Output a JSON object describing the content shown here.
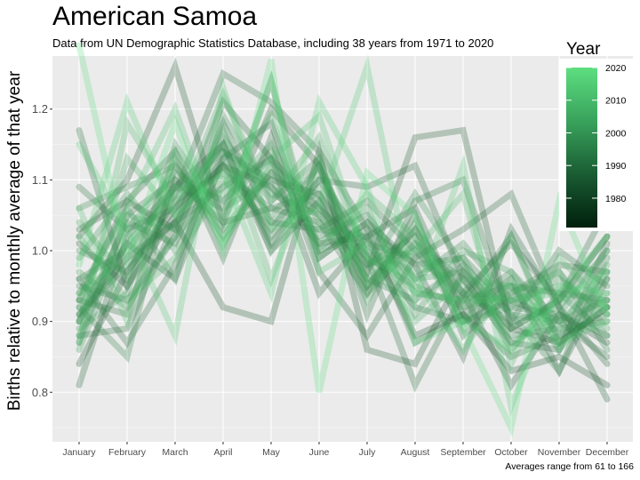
{
  "title": "American Samoa",
  "subtitle": "Data from UN Demographic Statistics Database, including 38 years from 1971 to 2020",
  "caption": "Averages range from 61 to 166",
  "chart_data": {
    "type": "line",
    "title": "American Samoa",
    "ylabel": "Births relative to monthly average of that year",
    "xlabel": "",
    "categories": [
      "January",
      "February",
      "March",
      "April",
      "May",
      "June",
      "July",
      "August",
      "September",
      "October",
      "November",
      "December"
    ],
    "yticks": [
      "0.8",
      "0.9",
      "1.0",
      "1.1",
      "1.2"
    ],
    "ylim": [
      0.73,
      1.275
    ],
    "legend": {
      "title": "Year",
      "labels": [
        "2020",
        "2010",
        "2000",
        "1990",
        "1980"
      ],
      "placement": "right"
    },
    "colors": {
      "panel": "#ebebeb",
      "grid": "#ffffff",
      "low": "#00200c",
      "high": "#5ddf80"
    },
    "series": [
      {
        "name": "1971",
        "values": [
          1.01,
          0.95,
          1.05,
          1.12,
          1.09,
          1.01,
          1.02,
          0.88,
          0.91,
          0.83,
          0.85,
          0.81
        ]
      },
      {
        "name": "1972",
        "values": [
          0.84,
          0.97,
          1.06,
          1.15,
          1.0,
          1.07,
          0.95,
          1.03,
          0.94,
          0.81,
          0.91,
          0.87
        ]
      },
      {
        "name": "1973",
        "values": [
          0.91,
          0.99,
          1.04,
          0.92,
          0.9,
          1.14,
          0.86,
          0.84,
          0.97,
          0.89,
          0.93,
          1.02
        ]
      },
      {
        "name": "1974",
        "values": [
          1.02,
          1.1,
          1.26,
          1.04,
          1.2,
          1.12,
          0.97,
          1.16,
          1.17,
          0.89,
          0.87,
          0.92
        ]
      },
      {
        "name": "1975",
        "values": [
          0.93,
          1.07,
          1.03,
          1.21,
          1.13,
          0.94,
          1.02,
          1.06,
          0.91,
          0.96,
          0.83,
          0.96
        ]
      },
      {
        "name": "1976",
        "values": [
          0.9,
          1.01,
          0.96,
          1.13,
          1.18,
          0.99,
          1.04,
          0.98,
          0.85,
          1.03,
          0.92,
          0.79
        ]
      },
      {
        "name": "1977",
        "values": [
          0.81,
          1.02,
          1.09,
          1.15,
          1.01,
          1.1,
          1.09,
          1.12,
          0.96,
          0.87,
          0.86,
          1.01
        ]
      },
      {
        "name": "1978",
        "values": [
          1.03,
          1.07,
          1.14,
          0.99,
          1.16,
          0.97,
          0.88,
          0.99,
          1.03,
          1.08,
          0.92,
          0.84
        ]
      },
      {
        "name": "1979",
        "values": [
          0.96,
          0.87,
          0.98,
          1.14,
          1.1,
          1.08,
          0.99,
          0.81,
          0.94,
          1.01,
          0.93,
          1.06
        ]
      },
      {
        "name": "1980",
        "values": [
          0.93,
          0.91,
          1.1,
          1.04,
          1.06,
          1.04,
          0.94,
          1.05,
          0.88,
          0.94,
          0.98,
          0.97
        ]
      },
      {
        "name": "1981",
        "values": [
          1.17,
          0.95,
          1.08,
          1.25,
          1.21,
          1.14,
          1.03,
          0.87,
          0.91,
          0.85,
          0.88,
          0.91
        ]
      },
      {
        "name": "1982",
        "values": [
          0.88,
          0.89,
          1.04,
          1.09,
          1.13,
          1.06,
          1.0,
          0.92,
          0.9,
          0.93,
          0.9,
          0.85
        ]
      },
      {
        "name": "1983",
        "values": [
          1.09,
          1.03,
          1.06,
          1.12,
          1.03,
          1.12,
          0.91,
          1.07,
          1.1,
          0.9,
          1.0,
          0.95
        ]
      },
      {
        "name": "1984",
        "values": [
          0.95,
          0.93,
          1.02,
          1.18,
          1.04,
          1.03,
          1.07,
          1.0,
          0.93,
          1.02,
          0.87,
          0.92
        ]
      },
      {
        "name": "1985",
        "values": [
          0.87,
          1.05,
          1.1,
          1.07,
          1.14,
          1.0,
          1.03,
          0.98,
          0.99,
          0.92,
          0.91,
          0.88
        ]
      },
      {
        "name": "1986",
        "values": [
          0.92,
          0.85,
          1.12,
          1.02,
          1.11,
          1.05,
          0.98,
          1.02,
          0.9,
          0.95,
          0.94,
          0.93
        ]
      },
      {
        "name": "1987",
        "values": [
          1.0,
          0.97,
          1.07,
          1.11,
          1.06,
          1.08,
          0.96,
          0.93,
          0.98,
          0.91,
          0.83,
          0.99
        ]
      },
      {
        "name": "1988",
        "values": [
          0.9,
          1.04,
          1.01,
          1.16,
          1.07,
          1.13,
          0.94,
          1.01,
          0.96,
          0.88,
          0.89,
          0.9
        ]
      },
      {
        "name": "1989",
        "values": [
          0.96,
          1.0,
          1.09,
          1.06,
          1.1,
          1.02,
          1.05,
          0.96,
          1.01,
          0.93,
          0.97,
          0.86
        ]
      },
      {
        "name": "1990",
        "values": [
          1.06,
          1.09,
          1.12,
          1.03,
          1.11,
          1.06,
          0.99,
          0.95,
          0.92,
          0.97,
          0.9,
          0.93
        ]
      },
      {
        "name": "1991",
        "values": [
          0.91,
          0.98,
          1.04,
          1.13,
          1.02,
          1.1,
          1.01,
          0.99,
          0.94,
          0.9,
          0.92,
          1.0
        ]
      },
      {
        "name": "1992",
        "values": [
          0.94,
          1.06,
          0.96,
          1.19,
          1.08,
          1.05,
          0.97,
          1.08,
          0.98,
          0.86,
          0.94,
          0.88
        ]
      },
      {
        "name": "1993",
        "values": [
          0.89,
          0.94,
          1.15,
          1.05,
          1.24,
          0.99,
          1.04,
          0.94,
          0.93,
          0.95,
          0.86,
          0.97
        ]
      },
      {
        "name": "1994",
        "values": [
          0.99,
          1.08,
          1.0,
          1.12,
          1.05,
          1.12,
          0.95,
          1.03,
          0.9,
          0.92,
          0.96,
          0.91
        ]
      },
      {
        "name": "1995",
        "values": [
          0.86,
          1.03,
          1.11,
          1.07,
          1.13,
          1.01,
          1.06,
          0.91,
          1.0,
          0.97,
          0.88,
          0.94
        ]
      },
      {
        "name": "1996",
        "values": [
          0.97,
          0.92,
          1.02,
          1.1,
          1.04,
          1.09,
          0.98,
          1.0,
          0.95,
          0.89,
          0.93,
          1.02
        ]
      },
      {
        "name": "1997",
        "values": [
          0.92,
          1.01,
          1.08,
          1.14,
          1.09,
          1.03,
          1.02,
          0.96,
          0.97,
          0.91,
          0.9,
          0.96
        ]
      },
      {
        "name": "1998",
        "values": [
          1.04,
          0.96,
          1.13,
          1.01,
          1.12,
          1.07,
          0.93,
          1.04,
          0.92,
          0.94,
          0.97,
          0.89
        ]
      },
      {
        "name": "1999",
        "values": [
          0.88,
          1.05,
          1.03,
          1.17,
          1.0,
          1.11,
          1.0,
          0.97,
          0.99,
          0.87,
          0.91,
          1.0
        ]
      },
      {
        "name": "2000",
        "values": [
          0.94,
          0.99,
          1.09,
          1.08,
          1.15,
          1.04,
          0.96,
          1.01,
          0.94,
          0.93,
          0.95,
          0.92
        ]
      },
      {
        "name": "2002",
        "values": [
          0.9,
          1.13,
          1.05,
          1.22,
          1.07,
          1.16,
          0.99,
          0.9,
          0.96,
          0.95,
          0.89,
          0.98
        ]
      },
      {
        "name": "2004",
        "values": [
          1.02,
          0.93,
          0.99,
          1.09,
          1.19,
          1.0,
          1.08,
          1.02,
          0.89,
          1.02,
          0.86,
          0.93
        ]
      },
      {
        "name": "2006",
        "values": [
          0.87,
          1.18,
          1.07,
          1.15,
          0.96,
          1.13,
          0.95,
          1.0,
          1.08,
          0.84,
          0.99,
          0.92
        ]
      },
      {
        "name": "2008",
        "values": [
          1.06,
          0.9,
          1.14,
          1.04,
          1.24,
          0.97,
          1.01,
          0.94,
          0.93,
          0.93,
          0.94,
          1.02
        ]
      },
      {
        "name": "2010",
        "values": [
          0.93,
          1.06,
          1.2,
          1.01,
          1.13,
          1.19,
          0.99,
          0.96,
          0.86,
          0.96,
          0.87,
          0.9
        ]
      },
      {
        "name": "2012",
        "values": [
          1.15,
          1.03,
          0.88,
          1.23,
          1.03,
          1.06,
          1.26,
          0.93,
          1.12,
          0.78,
          0.95,
          0.94
        ]
      },
      {
        "name": "2015",
        "values": [
          0.98,
          1.21,
          1.05,
          1.11,
          0.94,
          1.21,
          1.09,
          0.87,
          0.9,
          0.86,
          0.93,
          0.97
        ]
      },
      {
        "name": "2020",
        "values": [
          1.29,
          0.99,
          1.18,
          1.0,
          1.27,
          0.8,
          1.11,
          1.05,
          0.89,
          0.75,
          1.07,
          0.91
        ]
      }
    ]
  }
}
